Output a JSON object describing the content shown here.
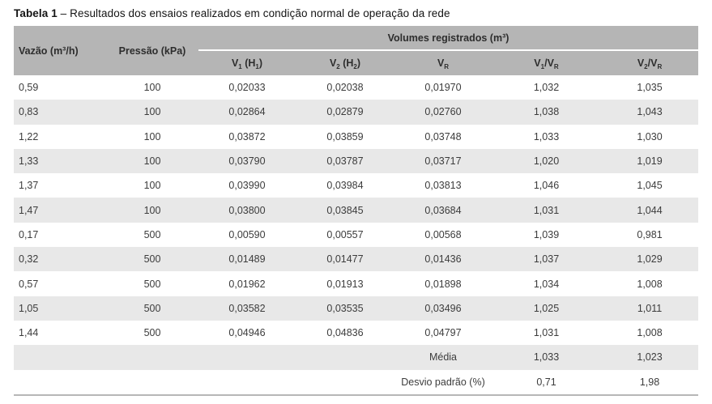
{
  "caption": {
    "label": "Tabela 1",
    "text": " – Resultados dos ensaios realizados em condição normal de operação da rede"
  },
  "colors": {
    "header_bg": "#b5b5b5",
    "stripe_bg": "#e8e8e8",
    "bottom_rule": "#b7b7b7",
    "text": "#3c3c3c"
  },
  "table": {
    "headers": {
      "vazao": "Vazão (m³/h)",
      "pressao": "Pressão (kPa)",
      "volumes_group": "Volumes registrados (m³)",
      "v1": "V<sub>1</sub> (H<sub>1</sub>)",
      "v2": "V<sub>2</sub> (H<sub>2</sub>)",
      "vr": "V<sub>R</sub>",
      "v1_vr": "V<sub>1</sub>/V<sub>R</sub>",
      "v2_vr": "V<sub>2</sub>/V<sub>R</sub>"
    },
    "column_keys": [
      "vazao",
      "pressao",
      "v1",
      "v2",
      "vr",
      "v1-vr",
      "v2-vr"
    ],
    "rows": [
      [
        "0,59",
        "100",
        "0,02033",
        "0,02038",
        "0,01970",
        "1,032",
        "1,035"
      ],
      [
        "0,83",
        "100",
        "0,02864",
        "0,02879",
        "0,02760",
        "1,038",
        "1,043"
      ],
      [
        "1,22",
        "100",
        "0,03872",
        "0,03859",
        "0,03748",
        "1,033",
        "1,030"
      ],
      [
        "1,33",
        "100",
        "0,03790",
        "0,03787",
        "0,03717",
        "1,020",
        "1,019"
      ],
      [
        "1,37",
        "100",
        "0,03990",
        "0,03984",
        "0,03813",
        "1,046",
        "1,045"
      ],
      [
        "1,47",
        "100",
        "0,03800",
        "0,03845",
        "0,03684",
        "1,031",
        "1,044"
      ],
      [
        "0,17",
        "500",
        "0,00590",
        "0,00557",
        "0,00568",
        "1,039",
        "0,981"
      ],
      [
        "0,32",
        "500",
        "0,01489",
        "0,01477",
        "0,01436",
        "1,037",
        "1,029"
      ],
      [
        "0,57",
        "500",
        "0,01962",
        "0,01913",
        "0,01898",
        "1,034",
        "1,008"
      ],
      [
        "1,05",
        "500",
        "0,03582",
        "0,03535",
        "0,03496",
        "1,025",
        "1,011"
      ],
      [
        "1,44",
        "500",
        "0,04946",
        "0,04836",
        "0,04797",
        "1,031",
        "1,008"
      ]
    ],
    "summary_rows": [
      [
        "",
        "",
        "",
        "",
        "Média",
        "1,033",
        "1,023"
      ],
      [
        "",
        "",
        "",
        "",
        "Desvio padrão (%)",
        "0,71",
        "1,98"
      ]
    ]
  }
}
